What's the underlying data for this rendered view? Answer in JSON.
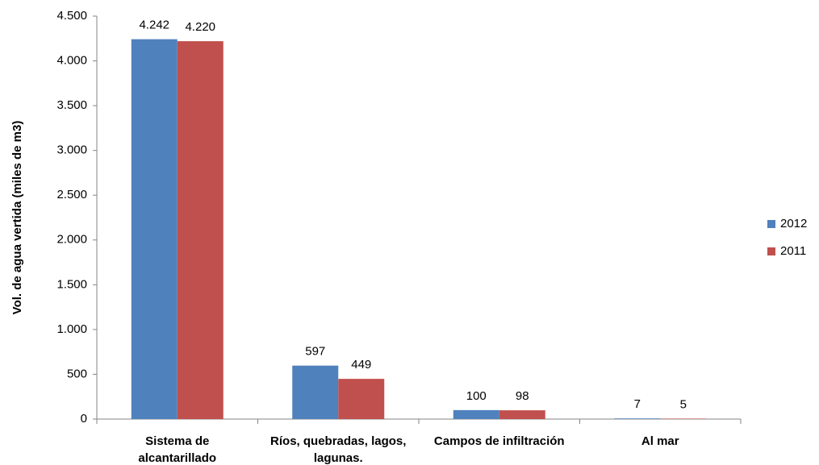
{
  "chart_data": {
    "type": "bar",
    "y_label": "Vol. de agua vertida (miles de m3)",
    "categories": [
      "Sistema de alcantarillado",
      "Ríos, quebradas, lagos, lagunas.",
      "Campos de infiltración",
      "Al mar"
    ],
    "series": [
      {
        "name": "2012",
        "color": "#4f81bd",
        "values": [
          4242,
          597,
          100,
          7
        ],
        "value_labels": [
          "4.242",
          "597",
          "100",
          "7"
        ]
      },
      {
        "name": "2011",
        "color": "#c0504d",
        "values": [
          4220,
          449,
          98,
          5
        ],
        "value_labels": [
          "4.220",
          "449",
          "98",
          "5"
        ]
      }
    ],
    "ylim": [
      0,
      4500
    ],
    "yticks": [
      0,
      500,
      {
        "value": 1000,
        "label": "1.000"
      },
      {
        "value": 1500,
        "label": "1.500"
      },
      {
        "value": 2000,
        "label": "2.000"
      },
      {
        "value": 2500,
        "label": "2.500"
      },
      {
        "value": 3000,
        "label": "3.000"
      },
      {
        "value": 3500,
        "label": "3.500"
      },
      {
        "value": 4000,
        "label": "4.000"
      },
      {
        "value": 4500,
        "label": "4.500"
      }
    ],
    "legend": "right"
  }
}
